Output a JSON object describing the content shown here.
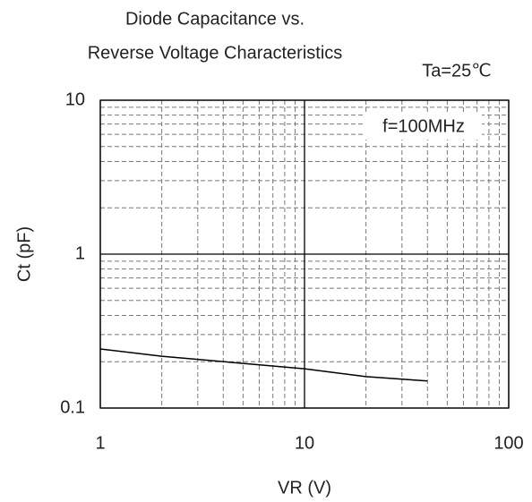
{
  "chart_data": {
    "type": "line",
    "title": [
      "Diode Capacitance vs.",
      "Reverse Voltage Characteristics"
    ],
    "annotations": [
      "Ta=25℃",
      "f=100MHz"
    ],
    "x_label": "VR (V)",
    "y_label": "Ct (pF)",
    "x": [
      1,
      2,
      5,
      10,
      20,
      40
    ],
    "series": [
      {
        "color": "#000000",
        "values": [
          0.242,
          0.217,
          0.195,
          0.18,
          0.16,
          0.15
        ]
      }
    ],
    "xlim": [
      1,
      100
    ],
    "ylim": [
      0.1,
      10
    ],
    "xticks": [
      1,
      10,
      100
    ],
    "yticks": [
      0.1,
      1,
      10
    ],
    "xscale": "log",
    "yscale": "log",
    "grid": true,
    "minor_grid": true
  }
}
